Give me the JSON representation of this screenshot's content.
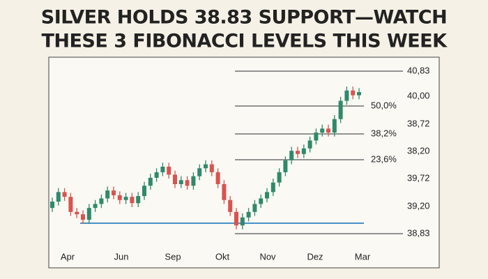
{
  "chart_data": {
    "type": "candlestick",
    "title_lines": [
      "SILVER HOLDS 38.83 SUPPORT—WATCH",
      "THESE 3 FIBONACCI LEVELS THIS WEEK"
    ],
    "x_labels": [
      "Apr",
      "Jun",
      "Sep",
      "Okt",
      "Nov",
      "Dez",
      "Mar"
    ],
    "right_labels": [
      "40,83",
      "40,00",
      "38,72",
      "38,20",
      "39,72",
      "39,20",
      "38,83"
    ],
    "fib_labels": [
      "50,0%",
      "38,2%",
      "23,6%"
    ],
    "up_color": "#2e8a6a",
    "down_color": "#d9534f",
    "support_color": "#4a90c8",
    "ylim": [
      38.6,
      41.0
    ],
    "open": [
      39.1,
      39.18,
      39.3,
      39.24,
      39.05,
      39.02,
      38.95,
      39.1,
      39.15,
      39.22,
      39.32,
      39.26,
      39.2,
      39.24,
      39.16,
      39.25,
      39.38,
      39.48,
      39.55,
      39.62,
      39.52,
      39.4,
      39.45,
      39.38,
      39.5,
      39.6,
      39.65,
      39.55,
      39.4,
      39.2,
      39.05,
      38.88,
      38.98,
      39.05,
      39.15,
      39.22,
      39.3,
      39.42,
      39.55,
      39.7,
      39.82,
      39.78,
      39.85,
      39.95,
      40.05,
      40.1,
      40.05,
      40.22,
      40.45,
      40.58,
      40.52
    ],
    "high": [
      39.23,
      39.35,
      39.35,
      39.29,
      39.1,
      39.07,
      39.15,
      39.2,
      39.27,
      39.37,
      39.37,
      39.31,
      39.29,
      39.29,
      39.3,
      39.43,
      39.53,
      39.6,
      39.67,
      39.67,
      39.57,
      39.5,
      39.5,
      39.55,
      39.65,
      39.7,
      39.7,
      39.6,
      39.45,
      39.25,
      39.1,
      39.03,
      39.1,
      39.2,
      39.27,
      39.35,
      39.47,
      39.6,
      39.75,
      39.87,
      39.87,
      39.9,
      40.0,
      40.1,
      40.15,
      40.15,
      40.27,
      40.5,
      40.63,
      40.63,
      40.61
    ],
    "low": [
      39.05,
      39.13,
      39.19,
      39.0,
      38.97,
      38.9,
      38.9,
      39.05,
      39.1,
      39.17,
      39.21,
      39.15,
      39.15,
      39.11,
      39.11,
      39.2,
      39.33,
      39.43,
      39.5,
      39.47,
      39.35,
      39.35,
      39.33,
      39.33,
      39.45,
      39.55,
      39.5,
      39.35,
      39.15,
      39.0,
      38.83,
      38.83,
      38.93,
      39.0,
      39.1,
      39.17,
      39.25,
      39.37,
      39.5,
      39.65,
      39.73,
      39.73,
      39.8,
      39.9,
      40.0,
      40.0,
      40.0,
      40.17,
      40.4,
      40.47,
      40.47
    ],
    "close": [
      39.18,
      39.3,
      39.24,
      39.05,
      39.02,
      38.95,
      39.1,
      39.15,
      39.22,
      39.32,
      39.26,
      39.2,
      39.24,
      39.16,
      39.25,
      39.38,
      39.48,
      39.55,
      39.62,
      39.52,
      39.4,
      39.45,
      39.38,
      39.5,
      39.6,
      39.65,
      39.55,
      39.4,
      39.2,
      39.05,
      38.88,
      38.98,
      39.05,
      39.15,
      39.22,
      39.3,
      39.42,
      39.55,
      39.7,
      39.82,
      39.78,
      39.85,
      39.95,
      40.05,
      40.1,
      40.05,
      40.22,
      40.45,
      40.58,
      40.52,
      40.56
    ]
  }
}
